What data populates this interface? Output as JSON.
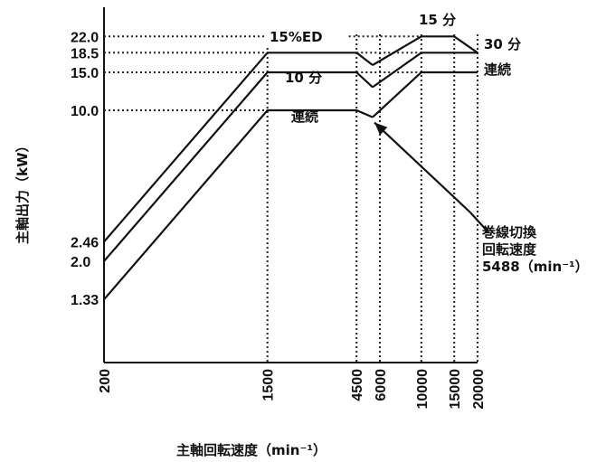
{
  "chart_data": {
    "type": "line",
    "xlabel": "主軸回転速度（min⁻¹）",
    "ylabel": "主軸出力（kW）",
    "x_ticks": [
      200,
      1500,
      4500,
      6000,
      10000,
      15000,
      20000
    ],
    "y_ticks": [
      1.33,
      2.0,
      2.46,
      10.0,
      15.0,
      18.5,
      22.0
    ],
    "series": [
      {
        "name": "15%ED",
        "points": [
          [
            200,
            2.46
          ],
          [
            1500,
            18.5
          ],
          [
            4500,
            18.5
          ]
        ]
      },
      {
        "name": "10 分",
        "points": [
          [
            200,
            2.0
          ],
          [
            1500,
            15.0
          ],
          [
            4500,
            15.0
          ]
        ]
      },
      {
        "name": "連続",
        "points": [
          [
            200,
            1.33
          ],
          [
            1500,
            10.0
          ],
          [
            4500,
            10.0
          ],
          [
            5488,
            9.3
          ]
        ]
      },
      {
        "name": "15 分",
        "points": [
          [
            5488,
            16.2
          ],
          [
            10000,
            22.0
          ],
          [
            15000,
            22.0
          ],
          [
            20000,
            18.5
          ]
        ]
      },
      {
        "name": "30 分",
        "points": [
          [
            5488,
            12.8
          ],
          [
            10000,
            18.5
          ],
          [
            20000,
            18.5
          ]
        ]
      },
      {
        "name": "連続",
        "points": [
          [
            5488,
            9.3
          ],
          [
            10000,
            15.0
          ],
          [
            20000,
            15.0
          ]
        ]
      }
    ],
    "connectors": [
      {
        "points": [
          [
            4500,
            18.5
          ],
          [
            5488,
            16.2
          ]
        ]
      },
      {
        "points": [
          [
            4500,
            15.0
          ],
          [
            5488,
            12.8
          ]
        ]
      }
    ],
    "annotation": {
      "lines": [
        "巻線切換",
        "回転速度",
        "5488（min⁻¹）"
      ],
      "x": 5488
    },
    "grid": "dotted guide lines"
  }
}
